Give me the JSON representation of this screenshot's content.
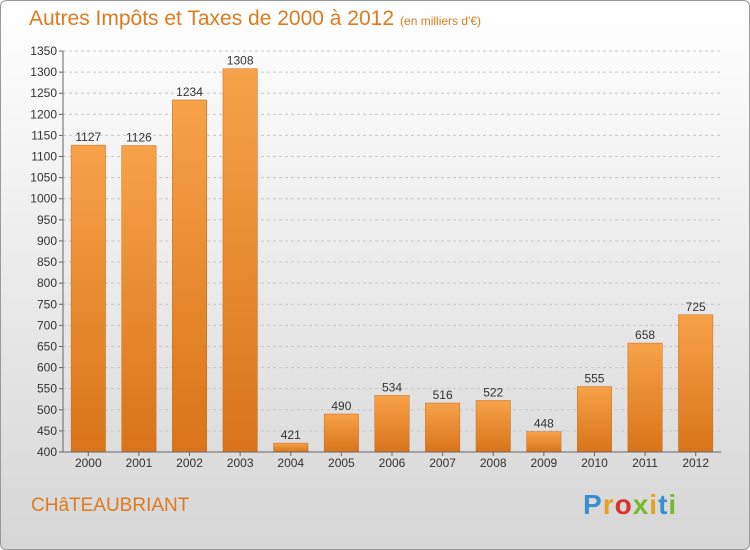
{
  "title": "Autres Impôts et Taxes de 2000 à 2012",
  "title_unit": "(en milliers d'€)",
  "city": "CHâTEAUBRIANT",
  "logo": [
    "P",
    "r",
    "o",
    "x",
    "i",
    "t",
    "i"
  ],
  "colors": {
    "bar": "#f08a28",
    "title": "#e07a1e"
  },
  "chart_data": {
    "type": "bar",
    "categories": [
      "2000",
      "2001",
      "2002",
      "2003",
      "2004",
      "2005",
      "2006",
      "2007",
      "2008",
      "2009",
      "2010",
      "2011",
      "2012"
    ],
    "values": [
      1127,
      1126,
      1234,
      1308,
      421,
      490,
      534,
      516,
      522,
      448,
      555,
      658,
      725
    ],
    "ylim": [
      400,
      1350
    ],
    "yticks": [
      400,
      450,
      500,
      550,
      600,
      650,
      700,
      750,
      800,
      850,
      900,
      950,
      1000,
      1050,
      1100,
      1150,
      1200,
      1250,
      1300,
      1350
    ],
    "grid": true
  }
}
